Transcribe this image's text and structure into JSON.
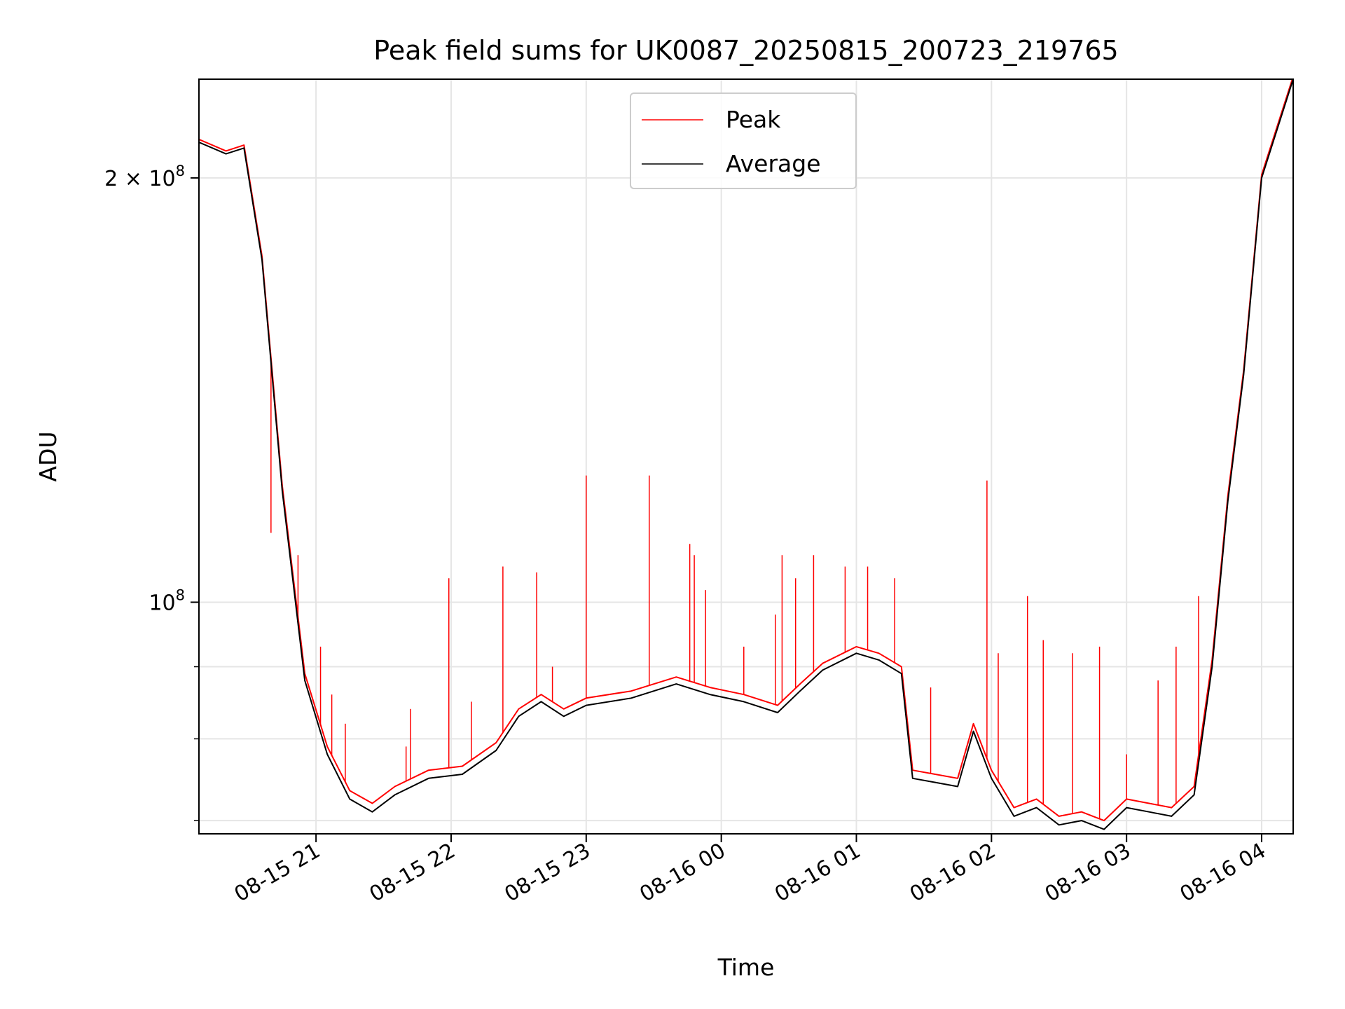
{
  "chart_data": {
    "type": "line",
    "title": "Peak field sums for UK0087_20250815_200723_219765",
    "xlabel": "Time",
    "ylabel": "ADU",
    "y_scale": "log",
    "xlim": [
      "2025-08-15 20:08",
      "2025-08-16 04:14"
    ],
    "ylim": [
      68500000,
      235000000
    ],
    "grid": true,
    "legend_position": "upper-center",
    "x_ticks": [
      {
        "t": "2025-08-15 21:00",
        "label": "08-15 21"
      },
      {
        "t": "2025-08-15 22:00",
        "label": "08-15 22"
      },
      {
        "t": "2025-08-15 23:00",
        "label": "08-15 23"
      },
      {
        "t": "2025-08-16 00:00",
        "label": "08-16 00"
      },
      {
        "t": "2025-08-16 01:00",
        "label": "08-16 01"
      },
      {
        "t": "2025-08-16 02:00",
        "label": "08-16 02"
      },
      {
        "t": "2025-08-16 03:00",
        "label": "08-16 03"
      },
      {
        "t": "2025-08-16 04:00",
        "label": "08-16 04"
      }
    ],
    "y_major_ticks": [
      {
        "value": 100000000,
        "base": "10",
        "exp": "8",
        "coef": ""
      },
      {
        "value": 200000000,
        "base": "10",
        "exp": "8",
        "coef": "2"
      }
    ],
    "y_minor_ticks": [
      70000000,
      80000000,
      90000000,
      300000000
    ],
    "colors": {
      "peak": "#ff0000",
      "average": "#000000",
      "grid": "#e5e5e5"
    },
    "series": [
      {
        "name": "Average",
        "color": "#000000",
        "x": [
          "2025-08-15 20:08",
          "2025-08-15 20:20",
          "2025-08-15 20:28",
          "2025-08-15 20:36",
          "2025-08-15 20:45",
          "2025-08-15 20:55",
          "2025-08-15 21:05",
          "2025-08-15 21:15",
          "2025-08-15 21:25",
          "2025-08-15 21:35",
          "2025-08-15 21:50",
          "2025-08-15 22:05",
          "2025-08-15 22:20",
          "2025-08-15 22:30",
          "2025-08-15 22:40",
          "2025-08-15 22:50",
          "2025-08-15 23:00",
          "2025-08-15 23:20",
          "2025-08-15 23:40",
          "2025-08-15 23:55",
          "2025-08-16 00:10",
          "2025-08-16 00:25",
          "2025-08-16 00:35",
          "2025-08-16 00:45",
          "2025-08-16 01:00",
          "2025-08-16 01:10",
          "2025-08-16 01:20",
          "2025-08-16 01:25",
          "2025-08-16 01:35",
          "2025-08-16 01:45",
          "2025-08-16 01:52",
          "2025-08-16 02:00",
          "2025-08-16 02:10",
          "2025-08-16 02:20",
          "2025-08-16 02:30",
          "2025-08-16 02:40",
          "2025-08-16 02:50",
          "2025-08-16 03:00",
          "2025-08-16 03:10",
          "2025-08-16 03:20",
          "2025-08-16 03:30",
          "2025-08-16 03:38",
          "2025-08-16 03:45",
          "2025-08-16 03:52",
          "2025-08-16 04:00",
          "2025-08-16 04:14"
        ],
        "values": [
          212000000,
          208000000,
          210000000,
          175000000,
          120000000,
          88000000,
          78000000,
          72500000,
          71000000,
          73000000,
          75000000,
          75500000,
          78500000,
          83000000,
          85000000,
          83000000,
          84500000,
          85500000,
          87500000,
          86000000,
          85000000,
          83500000,
          86500000,
          89500000,
          92000000,
          91000000,
          89000000,
          75000000,
          74500000,
          74000000,
          81000000,
          75000000,
          70500000,
          71500000,
          69500000,
          70000000,
          69000000,
          71500000,
          71000000,
          70500000,
          73000000,
          90000000,
          118000000,
          145000000,
          200000000,
          235000000
        ]
      },
      {
        "name": "Peak",
        "color": "#ff0000",
        "x": [
          "2025-08-15 20:08",
          "2025-08-15 20:20",
          "2025-08-15 20:28",
          "2025-08-15 20:36",
          "2025-08-15 20:45",
          "2025-08-15 20:55",
          "2025-08-15 21:05",
          "2025-08-15 21:15",
          "2025-08-15 21:25",
          "2025-08-15 21:35",
          "2025-08-15 21:50",
          "2025-08-15 22:05",
          "2025-08-15 22:20",
          "2025-08-15 22:30",
          "2025-08-15 22:40",
          "2025-08-15 22:50",
          "2025-08-15 23:00",
          "2025-08-15 23:20",
          "2025-08-15 23:40",
          "2025-08-15 23:55",
          "2025-08-16 00:10",
          "2025-08-16 00:25",
          "2025-08-16 00:35",
          "2025-08-16 00:45",
          "2025-08-16 01:00",
          "2025-08-16 01:10",
          "2025-08-16 01:20",
          "2025-08-16 01:25",
          "2025-08-16 01:35",
          "2025-08-16 01:45",
          "2025-08-16 01:52",
          "2025-08-16 02:00",
          "2025-08-16 02:10",
          "2025-08-16 02:20",
          "2025-08-16 02:30",
          "2025-08-16 02:40",
          "2025-08-16 02:50",
          "2025-08-16 03:00",
          "2025-08-16 03:10",
          "2025-08-16 03:20",
          "2025-08-16 03:30",
          "2025-08-16 03:38",
          "2025-08-16 03:45",
          "2025-08-16 03:52",
          "2025-08-16 04:00",
          "2025-08-16 04:14"
        ],
        "values": [
          213000000,
          209000000,
          211000000,
          176000000,
          121000000,
          89000000,
          79000000,
          73500000,
          72000000,
          74000000,
          76000000,
          76500000,
          79500000,
          84000000,
          86000000,
          84000000,
          85500000,
          86500000,
          88500000,
          87000000,
          86000000,
          84500000,
          87500000,
          90500000,
          93000000,
          92000000,
          90000000,
          76000000,
          75500000,
          75000000,
          82000000,
          76000000,
          71500000,
          72500000,
          70500000,
          71000000,
          70000000,
          72500000,
          72000000,
          71500000,
          74000000,
          91000000,
          119000000,
          146000000,
          201000000,
          236000000
        ]
      }
    ],
    "peak_spikes": [
      {
        "t": "2025-08-15 20:40",
        "value": 112000000
      },
      {
        "t": "2025-08-15 20:52",
        "value": 108000000
      },
      {
        "t": "2025-08-15 21:02",
        "value": 93000000
      },
      {
        "t": "2025-08-15 21:07",
        "value": 86000000
      },
      {
        "t": "2025-08-15 21:13",
        "value": 82000000
      },
      {
        "t": "2025-08-15 21:40",
        "value": 79000000
      },
      {
        "t": "2025-08-15 21:42",
        "value": 84000000
      },
      {
        "t": "2025-08-15 21:59",
        "value": 104000000
      },
      {
        "t": "2025-08-15 22:09",
        "value": 85000000
      },
      {
        "t": "2025-08-15 22:23",
        "value": 106000000
      },
      {
        "t": "2025-08-15 22:38",
        "value": 105000000
      },
      {
        "t": "2025-08-15 22:45",
        "value": 90000000
      },
      {
        "t": "2025-08-15 23:00",
        "value": 123000000
      },
      {
        "t": "2025-08-15 23:28",
        "value": 123000000
      },
      {
        "t": "2025-08-15 23:46",
        "value": 110000000
      },
      {
        "t": "2025-08-15 23:48",
        "value": 108000000
      },
      {
        "t": "2025-08-15 23:53",
        "value": 102000000
      },
      {
        "t": "2025-08-16 00:10",
        "value": 93000000
      },
      {
        "t": "2025-08-16 00:24",
        "value": 98000000
      },
      {
        "t": "2025-08-16 00:27",
        "value": 108000000
      },
      {
        "t": "2025-08-16 00:33",
        "value": 104000000
      },
      {
        "t": "2025-08-16 00:41",
        "value": 108000000
      },
      {
        "t": "2025-08-16 00:55",
        "value": 106000000
      },
      {
        "t": "2025-08-16 01:05",
        "value": 106000000
      },
      {
        "t": "2025-08-16 01:17",
        "value": 104000000
      },
      {
        "t": "2025-08-16 01:33",
        "value": 87000000
      },
      {
        "t": "2025-08-16 01:58",
        "value": 122000000
      },
      {
        "t": "2025-08-16 02:03",
        "value": 92000000
      },
      {
        "t": "2025-08-16 02:16",
        "value": 101000000
      },
      {
        "t": "2025-08-16 02:23",
        "value": 94000000
      },
      {
        "t": "2025-08-16 02:36",
        "value": 92000000
      },
      {
        "t": "2025-08-16 02:48",
        "value": 93000000
      },
      {
        "t": "2025-08-16 03:00",
        "value": 78000000
      },
      {
        "t": "2025-08-16 03:14",
        "value": 88000000
      },
      {
        "t": "2025-08-16 03:22",
        "value": 93000000
      },
      {
        "t": "2025-08-16 03:32",
        "value": 101000000
      }
    ]
  }
}
